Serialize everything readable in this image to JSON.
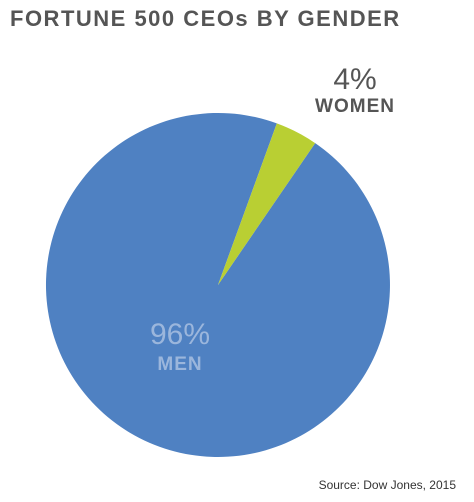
{
  "chart_data": {
    "type": "pie",
    "title": "FORTUNE 500 CEOs BY GENDER",
    "slices": [
      {
        "label": "MEN",
        "percent_label": "96%",
        "value": 96,
        "color": "#4f81c2",
        "text_color": "#9bb6dc"
      },
      {
        "label": "WOMEN",
        "percent_label": "4%",
        "value": 4,
        "color": "#b9cf33",
        "text_color": "#555555"
      }
    ],
    "source": "Source: Dow Jones, 2015"
  }
}
